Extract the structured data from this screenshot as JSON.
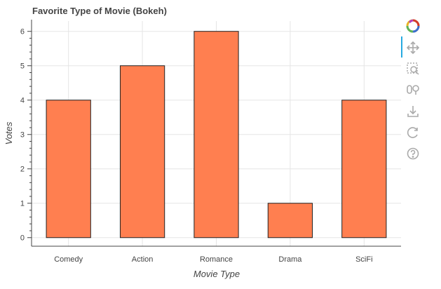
{
  "chart_data": {
    "type": "bar",
    "title": "Favorite Type of Movie (Bokeh)",
    "xlabel": "Movie Type",
    "ylabel": "Votes",
    "categories": [
      "Comedy",
      "Action",
      "Romance",
      "Drama",
      "SciFi"
    ],
    "values": [
      4,
      5,
      6,
      1,
      4
    ],
    "ylim": [
      -0.25,
      6.3
    ],
    "yticks": [
      0,
      1,
      2,
      3,
      4,
      5,
      6
    ],
    "grid": true,
    "bar_color": "#ff7f50",
    "bar_edge_color": "#222222"
  },
  "toolbar": {
    "tools": [
      {
        "name": "bokeh-logo-icon"
      },
      {
        "name": "pan-icon",
        "active": true
      },
      {
        "name": "box-zoom-icon"
      },
      {
        "name": "wheel-zoom-icon"
      },
      {
        "name": "save-icon"
      },
      {
        "name": "reset-icon"
      },
      {
        "name": "help-icon"
      }
    ]
  }
}
